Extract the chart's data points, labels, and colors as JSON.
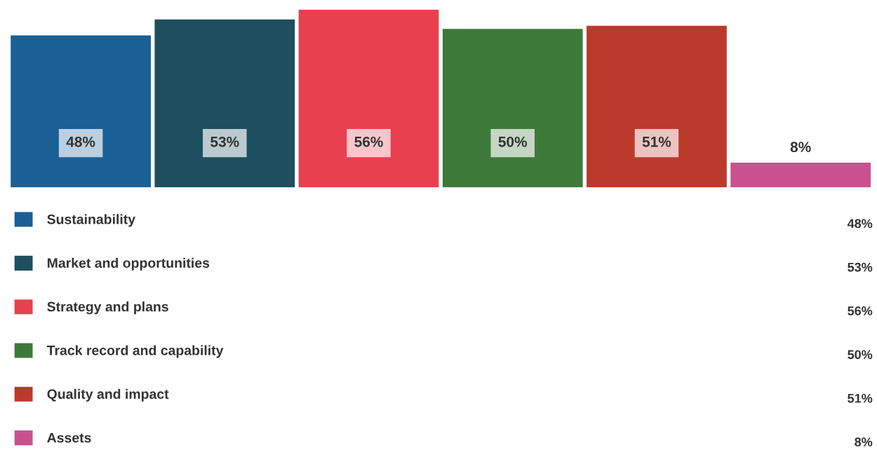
{
  "chart_data": {
    "type": "bar",
    "categories": [
      null
    ],
    "series": [
      {
        "name": "Sustainability",
        "color": "#1a5f96",
        "values": [
          48
        ],
        "value_labels": [
          "48%"
        ]
      },
      {
        "name": "Market and opportunities",
        "color": "#1d4f5e",
        "values": [
          53
        ],
        "value_labels": [
          "53%"
        ]
      },
      {
        "name": "Strategy and plans",
        "color": "#e8404f",
        "values": [
          56
        ],
        "value_labels": [
          "56%"
        ]
      },
      {
        "name": "Track record and capability",
        "color": "#3d7a3a",
        "values": [
          50
        ],
        "value_labels": [
          "50%"
        ]
      },
      {
        "name": "Quality and impact",
        "color": "#bb3a2c",
        "values": [
          51
        ],
        "value_labels": [
          "51%"
        ]
      },
      {
        "name": "Assets",
        "color": "#c9518f",
        "values": [
          8
        ],
        "value_labels": [
          "8%"
        ]
      }
    ],
    "legend": "bottom"
  }
}
